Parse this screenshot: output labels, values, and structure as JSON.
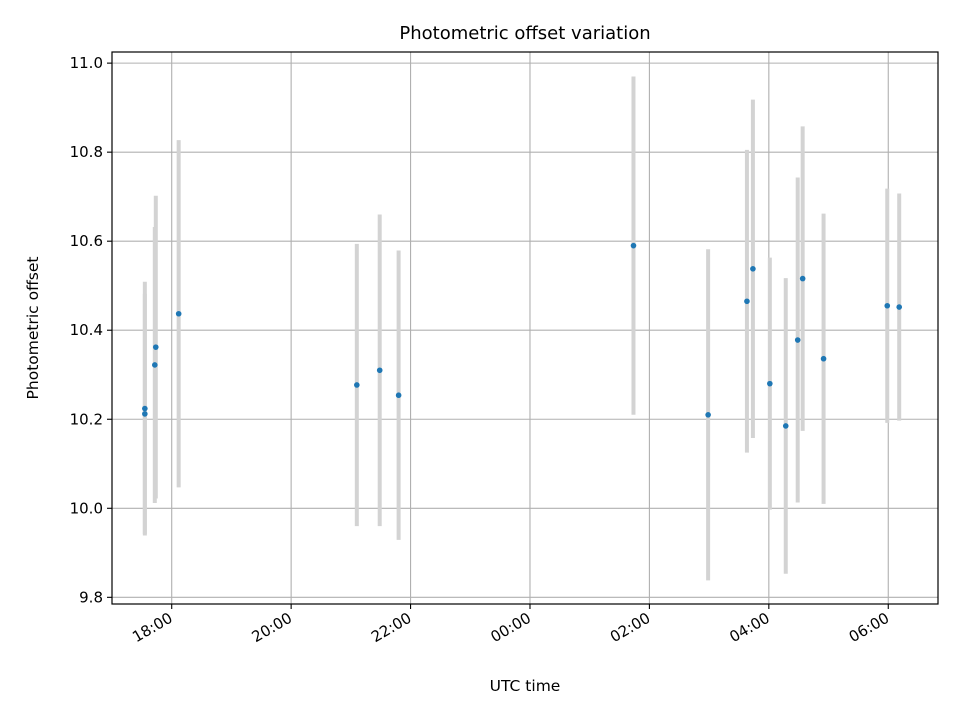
{
  "chart_data": {
    "type": "scatter",
    "title": "Photometric offset variation",
    "xlabel": "UTC time",
    "ylabel": "Photometric offset",
    "x_unit": "hours (UTC, continuing past midnight)",
    "xlim": [
      "17:00",
      "06:50 (+1 day)"
    ],
    "ylim": [
      9.785,
      11.025
    ],
    "grid": true,
    "legend": "none",
    "point_color": "#1f77b4",
    "errorbar_color": "#d3d3d3",
    "x_tick_labels": [
      "18:00",
      "20:00",
      "22:00",
      "00:00",
      "02:00",
      "04:00",
      "06:00"
    ],
    "y_tick_labels": [
      "9.8",
      "10.0",
      "10.2",
      "10.4",
      "10.6",
      "10.8",
      "11.0"
    ],
    "points": [
      {
        "time": "17:33",
        "y": 10.224,
        "yerr": 0.285
      },
      {
        "time": "17:33",
        "y": 10.212,
        "yerr": 0.27
      },
      {
        "time": "17:43",
        "y": 10.322,
        "yerr": 0.31
      },
      {
        "time": "17:44",
        "y": 10.362,
        "yerr": 0.34
      },
      {
        "time": "18:07",
        "y": 10.437,
        "yerr": 0.39
      },
      {
        "time": "21:06",
        "y": 10.277,
        "yerr": 0.317
      },
      {
        "time": "21:29",
        "y": 10.31,
        "yerr": 0.35
      },
      {
        "time": "21:48",
        "y": 10.254,
        "yerr": 0.325
      },
      {
        "time": "01:44",
        "y": 10.59,
        "yerr": 0.38
      },
      {
        "time": "02:59",
        "y": 10.21,
        "yerr": 0.372
      },
      {
        "time": "03:38",
        "y": 10.465,
        "yerr": 0.34
      },
      {
        "time": "03:44",
        "y": 10.538,
        "yerr": 0.38
      },
      {
        "time": "04:01",
        "y": 10.28,
        "yerr": 0.283
      },
      {
        "time": "04:17",
        "y": 10.185,
        "yerr": 0.332
      },
      {
        "time": "04:29",
        "y": 10.378,
        "yerr": 0.365
      },
      {
        "time": "04:34",
        "y": 10.516,
        "yerr": 0.342
      },
      {
        "time": "04:55",
        "y": 10.336,
        "yerr": 0.326
      },
      {
        "time": "05:59",
        "y": 10.455,
        "yerr": 0.263
      },
      {
        "time": "06:11",
        "y": 10.452,
        "yerr": 0.255
      }
    ]
  }
}
